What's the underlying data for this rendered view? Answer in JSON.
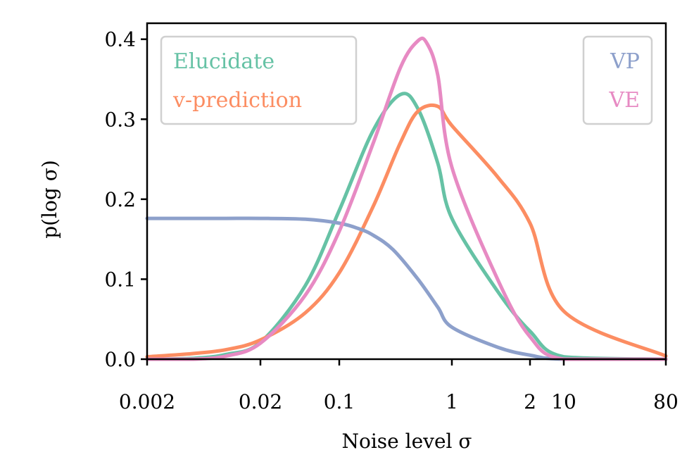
{
  "chart_data": {
    "type": "line",
    "title": "",
    "xlabel": "Noise level σ",
    "ylabel": "p(log σ)",
    "ylim": [
      0,
      0.42
    ],
    "y_ticks": [
      0.0,
      0.1,
      0.2,
      0.3,
      0.4
    ],
    "y_tick_labels": [
      "0.0",
      "0.1",
      "0.2",
      "0.3",
      "0.4"
    ],
    "x_scale": "log (with an axis break after σ = 2)",
    "x_ticks": [
      0.002,
      0.02,
      0.1,
      1,
      2,
      10,
      80
    ],
    "x_tick_labels": [
      "0.002",
      "0.02",
      "0.1",
      "1",
      "2",
      "10",
      "80"
    ],
    "grid": false,
    "legends": [
      {
        "placement": "top-left",
        "entries": [
          "Elucidate",
          "v-prediction"
        ]
      },
      {
        "placement": "top-right",
        "entries": [
          "VP",
          "VE"
        ]
      }
    ],
    "series": [
      {
        "name": "Elucidate",
        "color": "#66c2a5",
        "x": [
          0.002,
          0.005,
          0.01,
          0.02,
          0.05,
          0.1,
          0.2,
          0.35,
          0.5,
          0.75,
          1,
          1.5,
          2,
          10,
          80
        ],
        "y": [
          0.0,
          0.001,
          0.006,
          0.021,
          0.092,
          0.186,
          0.286,
          0.331,
          0.313,
          0.245,
          0.176,
          0.085,
          0.035,
          0.003,
          0.0
        ]
      },
      {
        "name": "v-prediction",
        "color": "#fc8d62",
        "x": [
          0.002,
          0.005,
          0.01,
          0.02,
          0.05,
          0.1,
          0.2,
          0.35,
          0.5,
          0.75,
          1,
          1.5,
          2,
          10,
          80
        ],
        "y": [
          0.003,
          0.007,
          0.012,
          0.024,
          0.058,
          0.108,
          0.191,
          0.271,
          0.31,
          0.316,
          0.292,
          0.228,
          0.17,
          0.06,
          0.004
        ]
      },
      {
        "name": "VP",
        "color": "#8da0cb",
        "x": [
          0.002,
          0.005,
          0.01,
          0.02,
          0.05,
          0.1,
          0.15,
          0.2,
          0.3,
          0.5,
          0.75,
          1,
          1.5,
          2,
          10,
          80
        ],
        "y": [
          0.176,
          0.176,
          0.176,
          0.176,
          0.175,
          0.17,
          0.163,
          0.155,
          0.137,
          0.1,
          0.065,
          0.04,
          0.015,
          0.005,
          0.0,
          0.0
        ]
      },
      {
        "name": "VE",
        "color": "#e78ac3",
        "x": [
          0.002,
          0.005,
          0.01,
          0.02,
          0.05,
          0.1,
          0.2,
          0.35,
          0.5,
          0.6,
          0.75,
          1,
          1.5,
          2,
          10,
          80
        ],
        "y": [
          0.0,
          0.0,
          0.004,
          0.02,
          0.08,
          0.16,
          0.27,
          0.365,
          0.398,
          0.395,
          0.355,
          0.24,
          0.1,
          0.028,
          0.0,
          0.0
        ]
      }
    ]
  }
}
